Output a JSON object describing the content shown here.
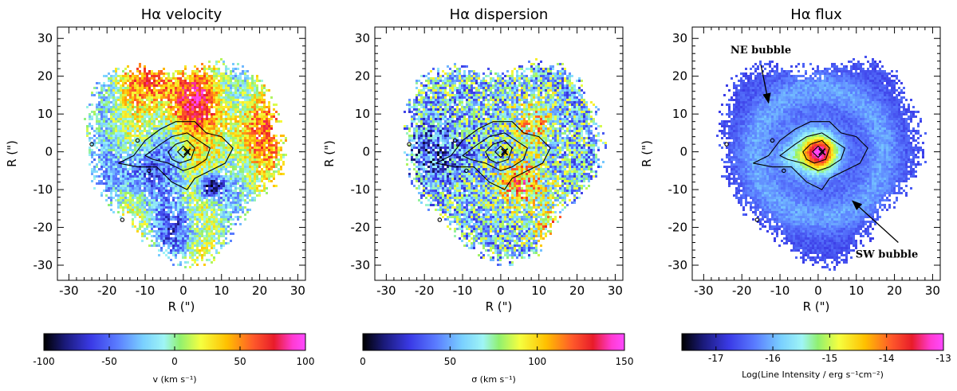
{
  "figure_title": "Hα velocity, dispersion and flux maps",
  "chart_data": [
    {
      "type": "heatmap",
      "title": "Hα velocity",
      "xlabel": "R (\")",
      "ylabel": "R (\")",
      "xlim": [
        -33,
        32
      ],
      "ylim": [
        -34,
        33
      ],
      "x_ticks": [
        -30,
        -20,
        -10,
        0,
        10,
        20,
        30
      ],
      "y_ticks": [
        -30,
        -20,
        -10,
        0,
        10,
        20,
        30
      ],
      "colorbar": {
        "label": "v (km s⁻¹)",
        "range": [
          -100,
          100
        ],
        "ticks": [
          -100,
          -50,
          0,
          50,
          100
        ],
        "colormap": [
          "#000000",
          "#1a1a78",
          "#3a3ae6",
          "#5a7cff",
          "#7ad0ff",
          "#9ff5f5",
          "#c8ffb0",
          "#f5ff40",
          "#ffc000",
          "#ff5a2a",
          "#e81c2a",
          "#ff3ad0",
          "#ff4aff"
        ]
      },
      "features": {
        "contour_levels": 4,
        "redshifted_regions": [
          {
            "x": 0,
            "y": 12,
            "vel": 70
          },
          {
            "x": -8,
            "y": 20,
            "vel": 65
          },
          {
            "x": 20,
            "y": 5,
            "vel": 60
          }
        ],
        "blueshifted_regions": [
          {
            "x": 7,
            "y": -9,
            "vel": -90
          },
          {
            "x": -12,
            "y": -5,
            "vel": -60
          },
          {
            "x": -2,
            "y": -20,
            "vel": -50
          }
        ]
      }
    },
    {
      "type": "heatmap",
      "title": "Hα dispersion",
      "xlabel": "R (\")",
      "ylabel": "R (\")",
      "xlim": [
        -33,
        32
      ],
      "ylim": [
        -34,
        33
      ],
      "x_ticks": [
        -30,
        -20,
        -10,
        0,
        10,
        20,
        30
      ],
      "y_ticks": [
        -30,
        -20,
        -10,
        0,
        10,
        20,
        30
      ],
      "colorbar": {
        "label": "σ (km s⁻¹)",
        "range": [
          0,
          150
        ],
        "ticks": [
          0,
          50,
          100,
          150
        ],
        "colormap": [
          "#000000",
          "#1a1a78",
          "#3a3ae6",
          "#5a7cff",
          "#7ad0ff",
          "#9ff5f5",
          "#c8ffb0",
          "#f5ff40",
          "#ffc000",
          "#ff5a2a",
          "#e81c2a",
          "#ff3ad0",
          "#ff4aff"
        ]
      },
      "features": {
        "contour_levels": 4,
        "high_dispersion_regions": [
          {
            "x": 5,
            "y": -8,
            "sigma": 125
          },
          {
            "x": 8,
            "y": 8,
            "sigma": 110
          },
          {
            "x": 15,
            "y": -20,
            "sigma": 130
          }
        ]
      }
    },
    {
      "type": "heatmap",
      "title": "Hα flux",
      "xlabel": "R (\")",
      "ylabel": "R (\")",
      "xlim": [
        -33,
        32
      ],
      "ylim": [
        -34,
        33
      ],
      "x_ticks": [
        -30,
        -20,
        -10,
        0,
        10,
        20,
        30
      ],
      "y_ticks": [
        -30,
        -20,
        -10,
        0,
        10,
        20,
        30
      ],
      "colorbar": {
        "label": "Log(Line Intensity / erg s⁻¹cm⁻²)",
        "range": [
          -17.6,
          -13
        ],
        "ticks": [
          -17,
          -16,
          -15,
          -14,
          -13
        ],
        "colormap": [
          "#000000",
          "#1a1a78",
          "#3a3ae6",
          "#5a7cff",
          "#7ad0ff",
          "#9ff5f5",
          "#c8ffb0",
          "#f5ff40",
          "#ffc000",
          "#ff5a2a",
          "#e81c2a",
          "#ff3ad0",
          "#ff4aff"
        ]
      },
      "annotations": [
        {
          "text": "NE bubble",
          "points_to": [
            -13,
            13
          ]
        },
        {
          "text": "SW bubble",
          "points_to": [
            9,
            -13
          ]
        }
      ],
      "features": {
        "contour_levels": 4,
        "peak_position": [
          0,
          0
        ],
        "peak_log_intensity": -13.8
      }
    }
  ]
}
